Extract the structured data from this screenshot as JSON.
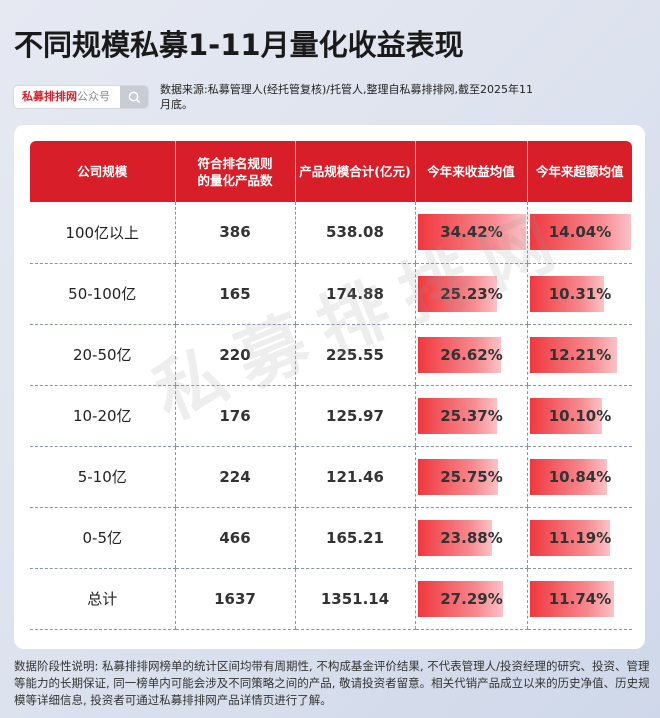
{
  "title": "不同规模私募1-11月量化收益表现",
  "search": {
    "brand": "私募排排网",
    "suffix": "公众号",
    "icon": "search-icon"
  },
  "source": "数据来源:私募管理人(经托管复核)/托管人,整理自私募排排网,截至2025年11月底。",
  "watermark": "私募排排网",
  "table": {
    "headers": [
      "公司规模",
      "符合排名规则的量化产品数",
      "产品规模合计(亿元)",
      "今年来收益均值",
      "今年来超额均值"
    ],
    "rows": [
      {
        "scale": "100亿以上",
        "count": "386",
        "aum": "538.08",
        "ret": "34.42%",
        "excess": "14.04%",
        "ret_v": 34.42,
        "excess_v": 14.04
      },
      {
        "scale": "50-100亿",
        "count": "165",
        "aum": "174.88",
        "ret": "25.23%",
        "excess": "10.31%",
        "ret_v": 25.23,
        "excess_v": 10.31
      },
      {
        "scale": "20-50亿",
        "count": "220",
        "aum": "225.55",
        "ret": "26.62%",
        "excess": "12.21%",
        "ret_v": 26.62,
        "excess_v": 12.21
      },
      {
        "scale": "10-20亿",
        "count": "176",
        "aum": "125.97",
        "ret": "25.37%",
        "excess": "10.10%",
        "ret_v": 25.37,
        "excess_v": 10.1
      },
      {
        "scale": "5-10亿",
        "count": "224",
        "aum": "121.46",
        "ret": "25.75%",
        "excess": "10.84%",
        "ret_v": 25.75,
        "excess_v": 10.84
      },
      {
        "scale": "0-5亿",
        "count": "466",
        "aum": "165.21",
        "ret": "23.88%",
        "excess": "11.19%",
        "ret_v": 23.88,
        "excess_v": 11.19
      },
      {
        "scale": "总计",
        "count": "1637",
        "aum": "1351.14",
        "ret": "27.29%",
        "excess": "11.74%",
        "ret_v": 27.29,
        "excess_v": 11.74
      }
    ]
  },
  "note": "数据阶段性说明: 私募排排网榜单的统计区间均带有周期性, 不构成基金评价结果, 不代表管理人/投资经理的研究、投资、管理等能力的长期保证, 同一榜单内可能会涉及不同策略之间的产品, 敬请投资者留意。相关代销产品成立以来的历史净值、历史规模等详细信息, 投资者可通过私募排排网产品详情页进行了解。"
}
